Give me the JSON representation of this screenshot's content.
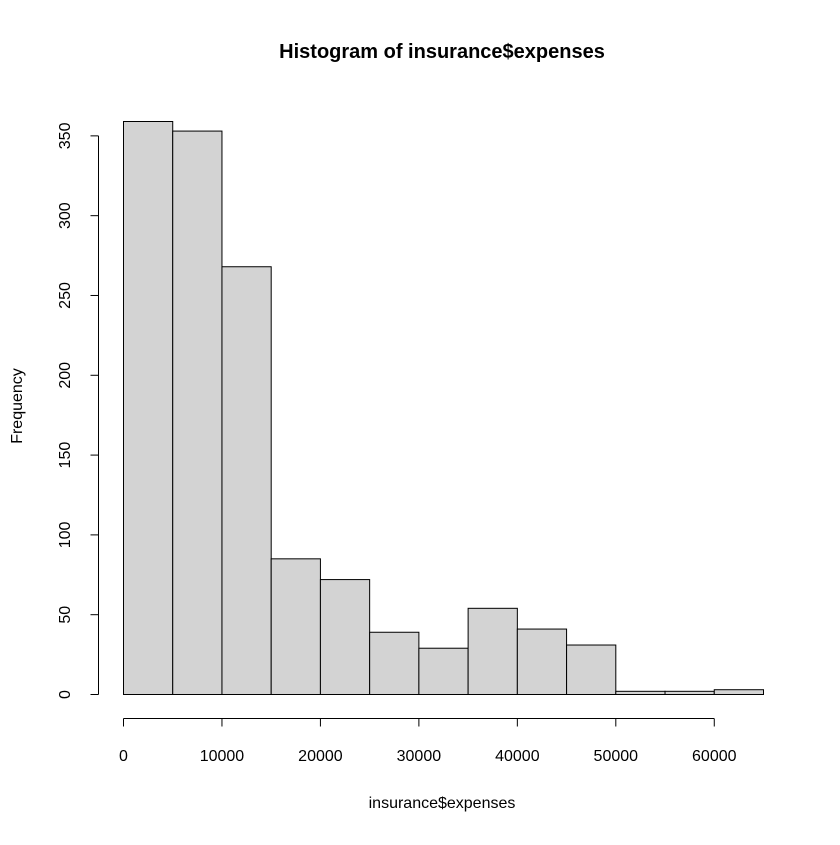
{
  "chart_data": {
    "type": "bar",
    "title": "Histogram of insurance$expenses",
    "xlabel": "insurance$expenses",
    "ylabel": "Frequency",
    "bin_edges": [
      0,
      5000,
      10000,
      15000,
      20000,
      25000,
      30000,
      35000,
      40000,
      45000,
      50000,
      55000,
      60000,
      65000
    ],
    "values": [
      359,
      353,
      268,
      85,
      72,
      39,
      29,
      54,
      41,
      31,
      2,
      2,
      3
    ],
    "xlim": [
      0,
      65000
    ],
    "ylim": [
      0,
      359
    ],
    "x_ticks": [
      0,
      10000,
      20000,
      30000,
      40000,
      50000,
      60000
    ],
    "x_tick_labels": [
      "0",
      "10000",
      "20000",
      "30000",
      "40000",
      "50000",
      "60000"
    ],
    "y_ticks": [
      0,
      50,
      100,
      150,
      200,
      250,
      300,
      350
    ],
    "y_tick_labels": [
      "0",
      "50",
      "100",
      "150",
      "200",
      "250",
      "300",
      "350"
    ],
    "grid": false,
    "bar_fill_color": "#d3d3d3",
    "bar_stroke_color": "#000000"
  }
}
